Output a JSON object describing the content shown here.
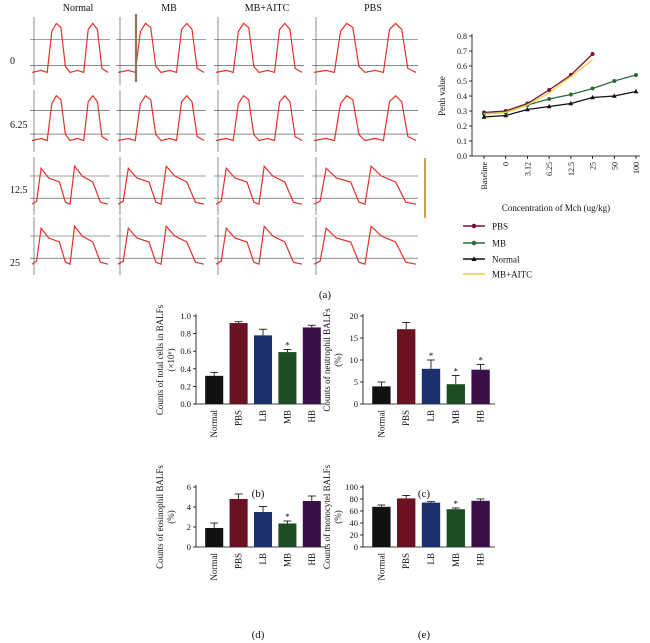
{
  "figure": {
    "panel_labels": {
      "a": "(a)",
      "b": "(b)",
      "c": "(c)",
      "d": "(d)",
      "e": "(e)"
    }
  },
  "traces": {
    "column_labels": [
      "Normal",
      "MB",
      "MB+AITC",
      "PBS"
    ],
    "row_labels": [
      "0",
      "6.25",
      "12.5",
      "25"
    ],
    "trace_color": "#e4312a",
    "grid_color": "#444444"
  },
  "chart_data": [
    {
      "id": "a",
      "type": "line",
      "title": "",
      "xlabel": "Concentration of Mch (ug/kg)",
      "ylabel": "Penh value",
      "categories": [
        "Baseline",
        "0",
        "3.12",
        "6.25",
        "12.5",
        "25",
        "50",
        "100"
      ],
      "ylim": [
        0,
        0.8
      ],
      "yticks": [
        "0.0",
        "0.1",
        "0.2",
        "0.3",
        "0.4",
        "0.5",
        "0.6",
        "0.7",
        "0.8"
      ],
      "legend_position": "below",
      "series": [
        {
          "name": "PBS",
          "color": "#7a1230",
          "marker": "circle",
          "values": [
            0.29,
            0.3,
            0.35,
            0.44,
            0.54,
            0.68,
            null,
            null
          ]
        },
        {
          "name": "MB",
          "color": "#2d6b3c",
          "marker": "circle",
          "values": [
            0.28,
            0.29,
            0.34,
            0.38,
            0.41,
            0.45,
            0.5,
            0.54
          ]
        },
        {
          "name": "Normal",
          "color": "#111111",
          "marker": "triangle",
          "values": [
            0.26,
            0.27,
            0.31,
            0.33,
            0.35,
            0.39,
            0.4,
            0.43
          ]
        },
        {
          "name": "MB+AITC",
          "color": "#e8d43a",
          "marker": "none",
          "values": [
            0.28,
            0.29,
            0.34,
            0.42,
            0.53,
            0.64,
            null,
            null
          ]
        }
      ]
    },
    {
      "id": "b",
      "type": "bar",
      "ylabel": "Counts of total cells in BALFs (×10⁶)",
      "categories": [
        "Normal",
        "PBS",
        "LB",
        "MB",
        "HB"
      ],
      "values": [
        0.32,
        0.92,
        0.78,
        0.59,
        0.87
      ],
      "errors": [
        0.04,
        0.015,
        0.07,
        0.03,
        0.025
      ],
      "significance": [
        "",
        "",
        "",
        "*",
        ""
      ],
      "ylim": [
        0,
        1.0
      ],
      "yticks": [
        "0.0",
        "0.2",
        "0.4",
        "0.6",
        "0.8",
        "1.0"
      ]
    },
    {
      "id": "c",
      "type": "bar",
      "ylabel": "Counts of neutrophil BALFs (%)",
      "categories": [
        "Normal",
        "PBS",
        "LB",
        "MB",
        "HB"
      ],
      "values": [
        4.0,
        17.0,
        8.0,
        4.5,
        7.8
      ],
      "errors": [
        1.0,
        1.5,
        2.0,
        2.0,
        1.2
      ],
      "significance": [
        "",
        "",
        "*",
        "*",
        "*"
      ],
      "ylim": [
        0,
        20
      ],
      "yticks": [
        "0",
        "5",
        "10",
        "15",
        "20"
      ]
    },
    {
      "id": "d",
      "type": "bar",
      "ylabel": "Counts of eosinophil BALFs (%)",
      "categories": [
        "Normal",
        "PBS",
        "LB",
        "MB",
        "HB"
      ],
      "values": [
        1.9,
        4.8,
        3.5,
        2.35,
        4.6
      ],
      "errors": [
        0.5,
        0.5,
        0.55,
        0.25,
        0.5
      ],
      "significance": [
        "",
        "",
        "",
        "*",
        ""
      ],
      "ylim": [
        0,
        6
      ],
      "yticks": [
        "0",
        "2",
        "4",
        "6"
      ]
    },
    {
      "id": "e",
      "type": "bar",
      "ylabel": "Counts of monocytel BALFs (%)",
      "categories": [
        "Normal",
        "PBS",
        "LB",
        "MB",
        "HB"
      ],
      "values": [
        67,
        81,
        74,
        63,
        77
      ],
      "errors": [
        3,
        5,
        1.5,
        2,
        3
      ],
      "significance": [
        "",
        "",
        "",
        "*",
        ""
      ],
      "ylim": [
        0,
        100
      ],
      "yticks": [
        "0",
        "20",
        "40",
        "60",
        "80",
        "100"
      ]
    }
  ],
  "bar_colors": [
    "#111111",
    "#6b1220",
    "#1c2f6e",
    "#1d4d22",
    "#3a0f4a"
  ]
}
